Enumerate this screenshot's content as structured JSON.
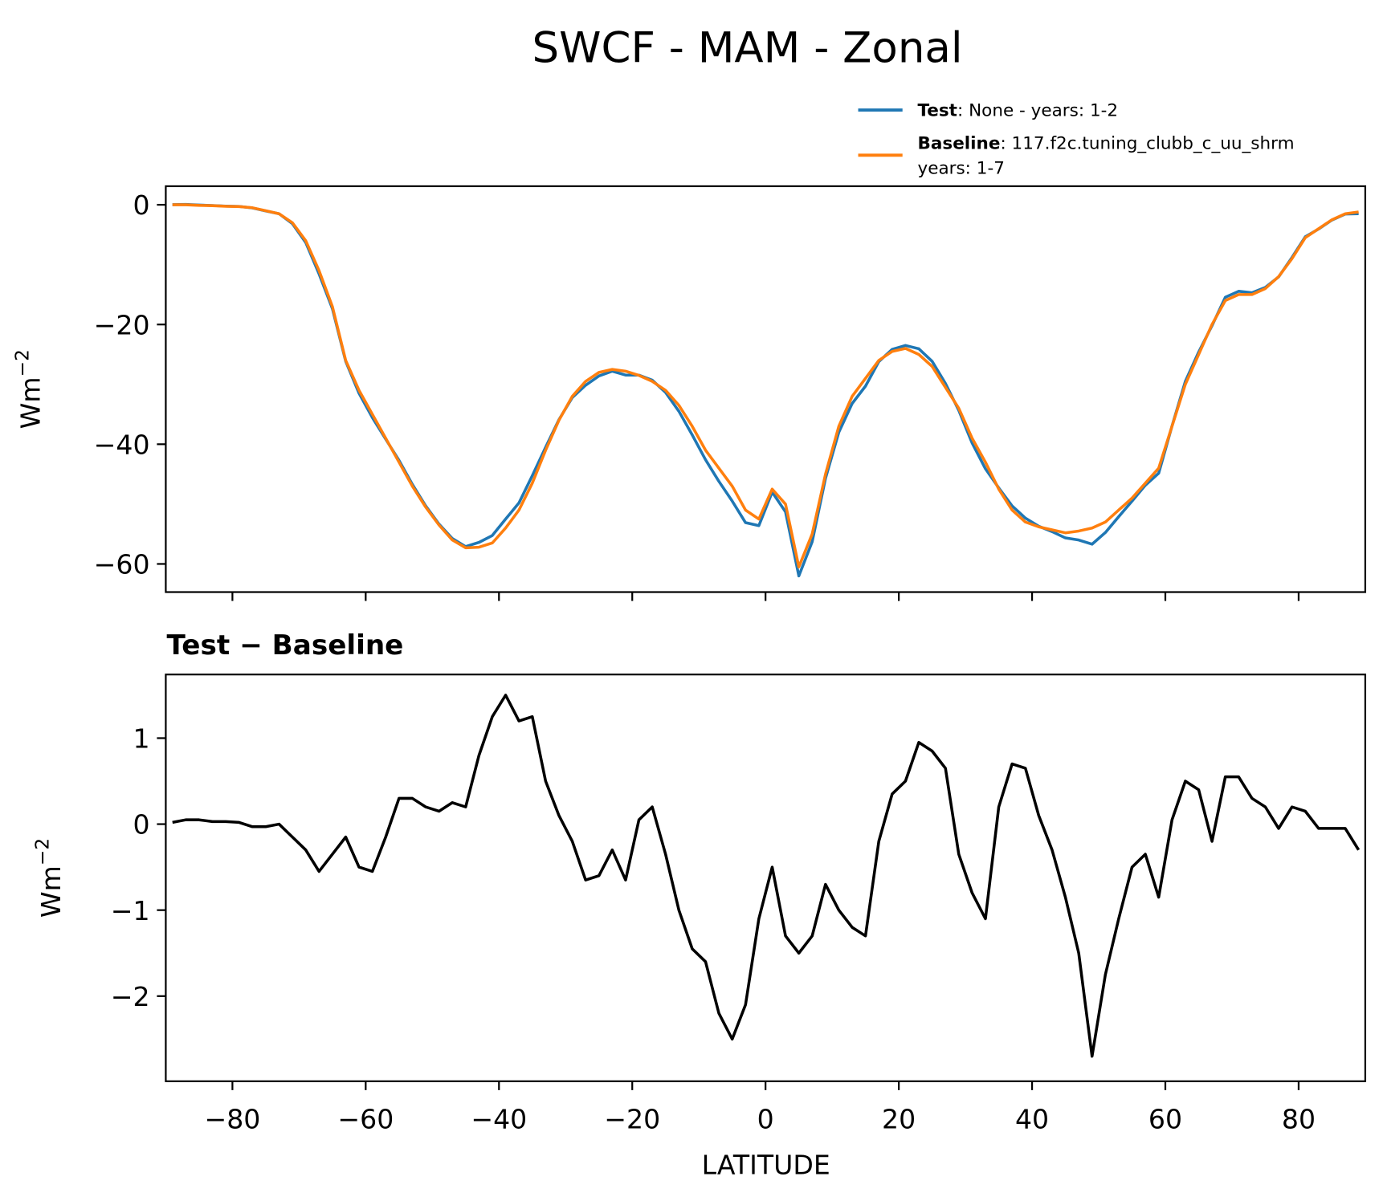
{
  "chart_data": [
    {
      "type": "line",
      "title": "SWCF - MAM - Zonal",
      "ylabel": "Wm",
      "ylabel_exponent": "−2",
      "x": [
        -89,
        -87,
        -85,
        -83,
        -81,
        -79,
        -77,
        -75,
        -73,
        -71,
        -69,
        -67,
        -65,
        -63,
        -61,
        -59,
        -57,
        -55,
        -53,
        -51,
        -49,
        -47,
        -45,
        -43,
        -41,
        -39,
        -37,
        -35,
        -33,
        -31,
        -29,
        -27,
        -25,
        -23,
        -21,
        -19,
        -17,
        -15,
        -13,
        -11,
        -9,
        -7,
        -5,
        -3,
        -1,
        1,
        3,
        5,
        7,
        9,
        11,
        13,
        15,
        17,
        19,
        21,
        23,
        25,
        27,
        29,
        31,
        33,
        35,
        37,
        39,
        41,
        43,
        45,
        47,
        49,
        51,
        53,
        55,
        57,
        59,
        61,
        63,
        65,
        67,
        69,
        71,
        73,
        75,
        77,
        79,
        81,
        83,
        85,
        87,
        89
      ],
      "series": [
        {
          "name": "Test",
          "description": [
            ": None - years: 1-2"
          ],
          "color": "#1f77b4",
          "values": [
            0.02,
            0.05,
            -0.05,
            -0.12,
            -0.22,
            -0.28,
            -0.53,
            -1.03,
            -1.5,
            -3.15,
            -6.3,
            -11.55,
            -17.35,
            -26.15,
            -31.5,
            -35.55,
            -39.15,
            -42.7,
            -46.7,
            -50.3,
            -53.35,
            -55.75,
            -57.1,
            -56.4,
            -55.25,
            -52.5,
            -49.8,
            -45.25,
            -40.5,
            -35.9,
            -32.2,
            -30.15,
            -28.6,
            -27.8,
            -28.45,
            -28.45,
            -29.3,
            -31.35,
            -34.5,
            -38.45,
            -42.6,
            -46.2,
            -49.5,
            -53.1,
            -53.6,
            -48,
            -51.3,
            -62,
            -56.3,
            -45.7,
            -38,
            -33.2,
            -30.3,
            -26.2,
            -24.15,
            -23.5,
            -24.05,
            -26.15,
            -29.85,
            -34.35,
            -39.8,
            -44.1,
            -47.3,
            -50.3,
            -52.35,
            -53.7,
            -54.6,
            -55.65,
            -56,
            -56.7,
            -54.75,
            -52.1,
            -49.5,
            -46.85,
            -44.85,
            -36.95,
            -29.5,
            -24.6,
            -20.2,
            -15.45,
            -14.45,
            -14.7,
            -13.8,
            -12.05,
            -8.8,
            -5.35,
            -4.05,
            -2.55,
            -1.55,
            -1.5
          ]
        },
        {
          "name": "Baseline",
          "description": [
            ": 117.f2c.tuning_clubb_c_uu_shrm",
            "years: 1-7"
          ],
          "color": "#ff7f0e",
          "values": [
            0,
            0,
            -0.1,
            -0.15,
            -0.25,
            -0.3,
            -0.5,
            -1,
            -1.5,
            -3,
            -6,
            -11,
            -17,
            -26,
            -31,
            -35,
            -39,
            -43,
            -47,
            -50.5,
            -53.5,
            -56,
            -57.3,
            -57.2,
            -56.5,
            -54,
            -51,
            -46.5,
            -41,
            -36,
            -32,
            -29.5,
            -28,
            -27.5,
            -27.8,
            -28.5,
            -29.5,
            -31,
            -33.5,
            -37,
            -41,
            -44,
            -47,
            -51,
            -52.5,
            -47.5,
            -50,
            -60.5,
            -55,
            -45,
            -37,
            -32,
            -29,
            -26,
            -24.5,
            -24,
            -25,
            -27,
            -30.5,
            -34,
            -39,
            -43,
            -47.5,
            -51,
            -53,
            -53.8,
            -54.3,
            -54.8,
            -54.5,
            -54,
            -53,
            -51,
            -49,
            -46.5,
            -44,
            -37,
            -30,
            -25,
            -20,
            -16,
            -15,
            -15,
            -14,
            -12,
            -9,
            -5.5,
            -4,
            -2.5,
            -1.5,
            -1.2
          ]
        }
      ],
      "xlim": [
        -90,
        90
      ],
      "xticks": [
        -80,
        -60,
        -40,
        -20,
        0,
        20,
        40,
        60,
        80
      ],
      "ylim": [
        -64.7,
        3.1
      ],
      "yticks": [
        {
          "value": -60,
          "label": "−60"
        },
        {
          "value": -40,
          "label": "−40"
        },
        {
          "value": -20,
          "label": "−20"
        },
        0
      ]
    },
    {
      "type": "line",
      "title": "Test − Baseline",
      "ylabel": "Wm",
      "ylabel_exponent": "−2",
      "xlabel": "LATITUDE",
      "color": "#000000",
      "x": [
        -89,
        -87,
        -85,
        -83,
        -81,
        -79,
        -77,
        -75,
        -73,
        -71,
        -69,
        -67,
        -65,
        -63,
        -61,
        -59,
        -57,
        -55,
        -53,
        -51,
        -49,
        -47,
        -45,
        -43,
        -41,
        -39,
        -37,
        -35,
        -33,
        -31,
        -29,
        -27,
        -25,
        -23,
        -21,
        -19,
        -17,
        -15,
        -13,
        -11,
        -9,
        -7,
        -5,
        -3,
        -1,
        1,
        3,
        5,
        7,
        9,
        11,
        13,
        15,
        17,
        19,
        21,
        23,
        25,
        27,
        29,
        31,
        33,
        35,
        37,
        39,
        41,
        43,
        45,
        47,
        49,
        51,
        53,
        55,
        57,
        59,
        61,
        63,
        65,
        67,
        69,
        71,
        73,
        75,
        77,
        79,
        81,
        83,
        85,
        87,
        89
      ],
      "values": [
        0.02,
        0.05,
        0.05,
        0.03,
        0.03,
        0.02,
        -0.03,
        -0.03,
        0,
        -0.15,
        -0.3,
        -0.55,
        -0.35,
        -0.15,
        -0.5,
        -0.55,
        -0.15,
        0.3,
        0.3,
        0.2,
        0.15,
        0.25,
        0.2,
        0.8,
        1.25,
        1.5,
        1.2,
        1.25,
        0.5,
        0.1,
        -0.2,
        -0.65,
        -0.6,
        -0.3,
        -0.65,
        0.05,
        0.2,
        -0.35,
        -1,
        -1.45,
        -1.6,
        -2.2,
        -2.5,
        -2.1,
        -1.1,
        -0.5,
        -1.3,
        -1.5,
        -1.3,
        -0.7,
        -1,
        -1.2,
        -1.3,
        -0.2,
        0.35,
        0.5,
        0.95,
        0.85,
        0.65,
        -0.35,
        -0.8,
        -1.1,
        0.2,
        0.7,
        0.65,
        0.1,
        -0.3,
        -0.85,
        -1.5,
        -2.7,
        -1.75,
        -1.1,
        -0.5,
        -0.35,
        -0.85,
        0.05,
        0.5,
        0.4,
        -0.2,
        0.55,
        0.55,
        0.3,
        0.2,
        -0.05,
        0.2,
        0.15,
        -0.05,
        -0.05,
        -0.05,
        -0.3
      ],
      "xlim": [
        -90,
        90
      ],
      "xticks": [
        {
          "value": -80,
          "label": "−80"
        },
        {
          "value": -60,
          "label": "−60"
        },
        {
          "value": -40,
          "label": "−40"
        },
        {
          "value": -20,
          "label": "−20"
        },
        0,
        20,
        40,
        60,
        80
      ],
      "ylim": [
        -2.99,
        1.74
      ],
      "yticks": [
        {
          "value": -2,
          "label": "−2"
        },
        {
          "value": -1,
          "label": "−1"
        },
        0,
        1
      ]
    }
  ]
}
